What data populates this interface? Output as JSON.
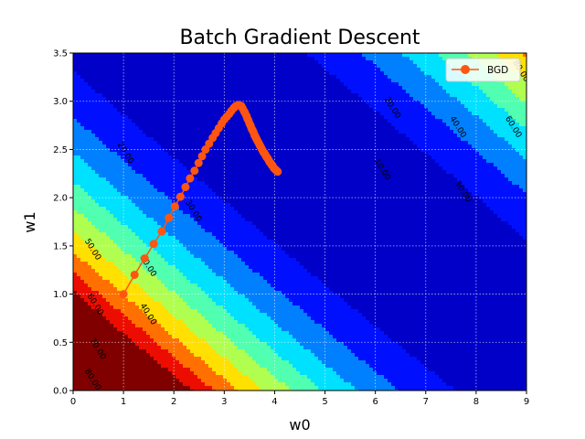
{
  "chart_data": {
    "type": "contour",
    "title": "Batch Gradient Descent",
    "xlabel": "w0",
    "ylabel": "w1",
    "xlim": [
      0,
      9
    ],
    "ylim": [
      0,
      3.5
    ],
    "x_ticks": [
      "0",
      "1",
      "2",
      "3",
      "4",
      "5",
      "6",
      "7",
      "8",
      "9"
    ],
    "y_ticks": [
      "0.0",
      "0.5",
      "1.0",
      "1.5",
      "2.0",
      "2.5",
      "3.0",
      "3.5"
    ],
    "grid": true,
    "grid_style": "dotted",
    "legend": {
      "placement": "top-right",
      "entries": [
        "BGD"
      ]
    },
    "contour_levels": [
      0,
      10,
      20,
      30,
      40,
      50,
      60,
      70,
      80,
      90
    ],
    "contour_labels": [
      {
        "text": "20.00",
        "x": 1.0,
        "y": 2.45
      },
      {
        "text": "30.00",
        "x": 2.35,
        "y": 1.85
      },
      {
        "text": "50.00",
        "x": 0.35,
        "y": 1.45
      },
      {
        "text": "30.00",
        "x": 1.45,
        "y": 1.28
      },
      {
        "text": "60.00",
        "x": 0.4,
        "y": 0.88
      },
      {
        "text": "40.00",
        "x": 1.45,
        "y": 0.78
      },
      {
        "text": "70.00",
        "x": 0.45,
        "y": 0.42
      },
      {
        "text": "80.00",
        "x": 0.35,
        "y": 0.1
      },
      {
        "text": "20.00",
        "x": 6.3,
        "y": 2.92
      },
      {
        "text": "10.00",
        "x": 6.1,
        "y": 2.28
      },
      {
        "text": "40.00",
        "x": 7.6,
        "y": 2.72
      },
      {
        "text": "60.00",
        "x": 8.7,
        "y": 2.72
      },
      {
        "text": "30.00",
        "x": 7.7,
        "y": 2.05
      },
      {
        "text": "80.00",
        "x": 8.85,
        "y": 3.3
      }
    ],
    "colormap": [
      "#00008f",
      "#0000c8",
      "#0010ff",
      "#0080ff",
      "#00e0ff",
      "#50ffaf",
      "#b0ff50",
      "#ffe000",
      "#ff7000",
      "#ed0d00",
      "#800000"
    ],
    "series": [
      {
        "name": "BGD",
        "color": "#ff5510",
        "x": [
          1.0,
          1.22,
          1.42,
          1.6,
          1.76,
          1.9,
          2.02,
          2.13,
          2.23,
          2.32,
          2.41,
          2.49,
          2.56,
          2.63,
          2.7,
          2.77,
          2.83,
          2.89,
          2.95,
          3.0,
          3.05,
          3.1,
          3.14,
          3.19,
          3.23,
          3.27,
          3.3,
          3.34,
          3.36,
          3.39,
          3.41,
          3.44,
          3.46,
          3.48,
          3.5,
          3.52,
          3.54,
          3.56,
          3.58,
          3.6,
          3.62,
          3.64,
          3.66,
          3.68,
          3.7,
          3.72,
          3.74,
          3.76,
          3.78,
          3.8,
          3.82,
          3.84,
          3.86,
          3.88,
          3.9,
          3.92,
          3.94,
          3.96,
          3.98,
          4.0,
          4.02,
          4.04,
          4.06
        ],
        "y": [
          1.0,
          1.2,
          1.37,
          1.52,
          1.65,
          1.79,
          1.91,
          2.01,
          2.11,
          2.2,
          2.28,
          2.36,
          2.43,
          2.5,
          2.56,
          2.62,
          2.67,
          2.72,
          2.77,
          2.81,
          2.84,
          2.87,
          2.9,
          2.93,
          2.95,
          2.96,
          2.96,
          2.95,
          2.93,
          2.9,
          2.88,
          2.85,
          2.82,
          2.8,
          2.77,
          2.75,
          2.72,
          2.7,
          2.68,
          2.65,
          2.63,
          2.61,
          2.59,
          2.57,
          2.55,
          2.53,
          2.51,
          2.49,
          2.47,
          2.46,
          2.44,
          2.42,
          2.41,
          2.39,
          2.37,
          2.36,
          2.34,
          2.33,
          2.31,
          2.3,
          2.29,
          2.28,
          2.27
        ]
      }
    ]
  }
}
